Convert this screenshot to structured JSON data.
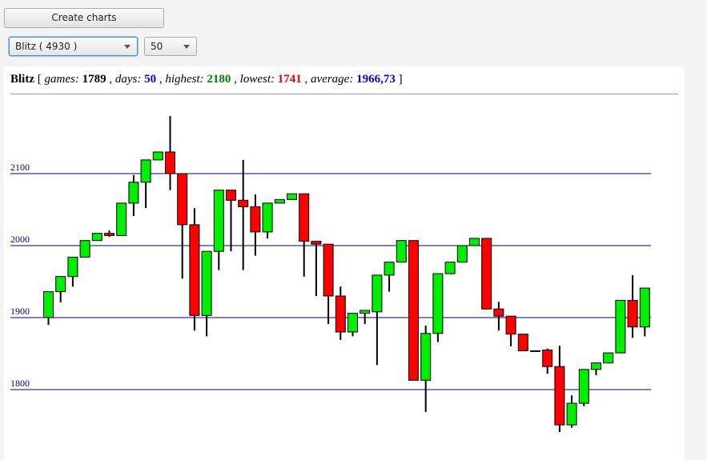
{
  "controls": {
    "button": "Create charts",
    "mode_select": "Blitz ( 4930 )",
    "days_select": "50"
  },
  "chart_data": {
    "type": "candlestick",
    "title": "Blitz",
    "stats": [
      {
        "label": "games",
        "value": 1789,
        "color": "#000000"
      },
      {
        "label": "days",
        "value": 50,
        "color": "#0000ee"
      },
      {
        "label": "highest",
        "value": 2180,
        "color": "#008000"
      },
      {
        "label": "lowest",
        "value": 1741,
        "color": "#ee0000"
      },
      {
        "label": "average",
        "value": 1966.73,
        "value_label": "1966,73",
        "color": "#0000ee"
      }
    ],
    "up_color": "#00ee00",
    "down_color": "#ff0000",
    "open": [
      1900,
      1936,
      1957,
      1984,
      2007,
      2017,
      2014,
      2059,
      2088,
      2119,
      2130,
      2100,
      2029,
      1903,
      1992,
      2077,
      2063,
      2054,
      2019,
      2059,
      2064,
      2072,
      2006,
      2002,
      1930,
      1880,
      1906,
      1908,
      1959,
      1977,
      2007,
      1813,
      1878,
      1961,
      1977,
      2000,
      2010,
      1912,
      1902,
      1877,
      1854,
      1855,
      1832,
      1751,
      1781,
      1828,
      1837,
      1851,
      1924,
      1887
    ],
    "high": [
      1936,
      1957,
      1984,
      2007,
      2017,
      2021,
      2059,
      2098,
      2119,
      2130,
      2180,
      2100,
      2052,
      1992,
      2077,
      2077,
      2119,
      2071,
      2059,
      2064,
      2072,
      2072,
      2006,
      2002,
      1943,
      1906,
      1910,
      1959,
      1977,
      2007,
      2007,
      1889,
      1961,
      1977,
      2000,
      2010,
      2010,
      1922,
      1902,
      1877,
      1854,
      1857,
      1861,
      1792,
      1828,
      1837,
      1851,
      1924,
      1959,
      1941
    ],
    "low": [
      1890,
      1921,
      1943,
      1984,
      2007,
      2012,
      2014,
      2041,
      2052,
      2119,
      2077,
      1954,
      1882,
      1874,
      1966,
      1992,
      1966,
      1986,
      2010,
      2059,
      2064,
      1957,
      1930,
      1891,
      1869,
      1874,
      1891,
      1834,
      1936,
      1977,
      1813,
      1769,
      1866,
      1961,
      1977,
      2000,
      1912,
      1882,
      1860,
      1854,
      1853,
      1822,
      1741,
      1747,
      1777,
      1820,
      1837,
      1851,
      1872,
      1874
    ],
    "close": [
      1936,
      1957,
      1984,
      2007,
      2017,
      2014,
      2059,
      2088,
      2119,
      2130,
      2100,
      2029,
      1903,
      1992,
      2077,
      2063,
      2054,
      2019,
      2059,
      2064,
      2072,
      2006,
      2002,
      1930,
      1880,
      1906,
      1910,
      1959,
      1977,
      2007,
      1813,
      1878,
      1961,
      1977,
      2000,
      2010,
      1912,
      1902,
      1877,
      1854,
      1853,
      1832,
      1751,
      1781,
      1828,
      1837,
      1851,
      1924,
      1887,
      1941
    ],
    "ylim": [
      1705,
      2200
    ],
    "yticks": [
      1800,
      1900,
      2000,
      2100
    ],
    "grid": true,
    "grid_color": "#000080"
  }
}
